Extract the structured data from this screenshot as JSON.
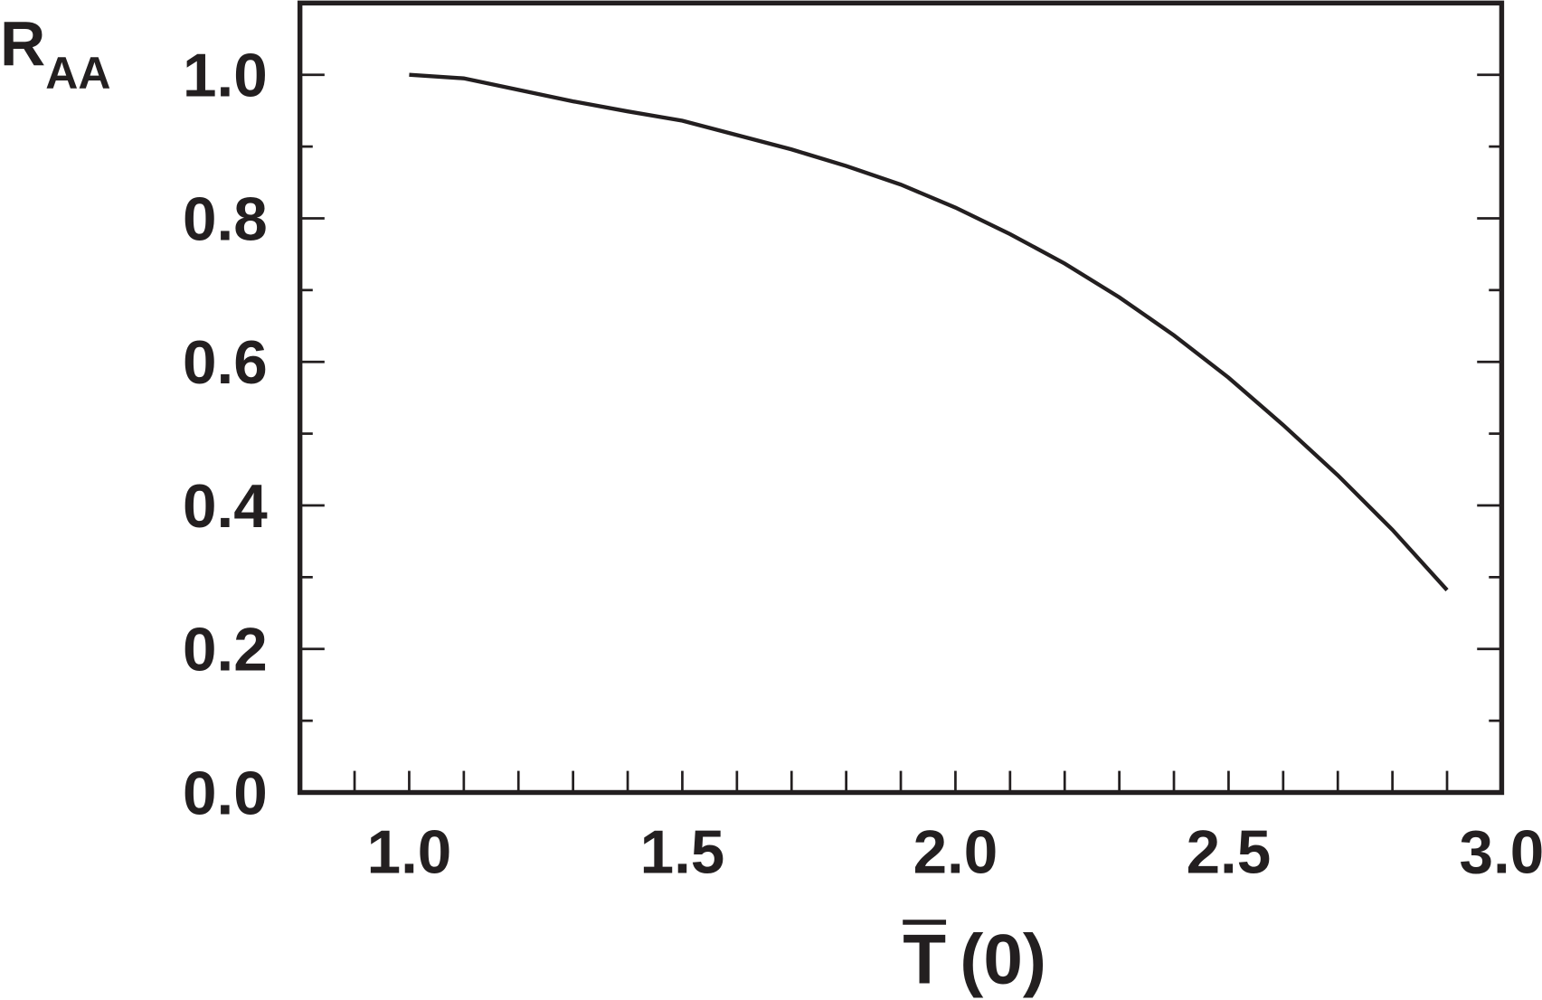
{
  "chart_data": {
    "type": "line",
    "ylabel": {
      "main": "R",
      "sub": "AA"
    },
    "xlabel": {
      "symbol": "T",
      "rest": "(0)"
    },
    "x": [
      1.0,
      1.1,
      1.2,
      1.3,
      1.4,
      1.5,
      1.6,
      1.7,
      1.8,
      1.9,
      2.0,
      2.1,
      2.2,
      2.3,
      2.4,
      2.5,
      2.6,
      2.7,
      2.8,
      2.9
    ],
    "series": [
      {
        "color": "#231f20",
        "values": [
          1.0,
          0.995,
          0.979,
          0.963,
          0.949,
          0.936,
          0.916,
          0.896,
          0.873,
          0.847,
          0.815,
          0.778,
          0.737,
          0.69,
          0.637,
          0.578,
          0.512,
          0.442,
          0.366,
          0.282
        ]
      }
    ],
    "xlim": [
      0.8,
      3.0
    ],
    "ylim": [
      0,
      1.1
    ],
    "xticks": [
      {
        "value": 1,
        "label": "1.0"
      },
      1.5,
      {
        "value": 2,
        "label": "2.0"
      },
      2.5,
      {
        "value": 3,
        "label": "3.0"
      }
    ],
    "yticks": [
      {
        "value": 0,
        "label": "0.0"
      },
      0.2,
      0.4,
      0.6,
      0.8,
      {
        "value": 1,
        "label": "1.0"
      }
    ],
    "xminor_ticks": [
      0.9,
      1.1,
      1.2,
      1.3,
      1.4,
      1.6,
      1.7,
      1.8,
      1.9,
      2.1,
      2.2,
      2.3,
      2.4,
      2.6,
      2.7,
      2.8,
      2.9
    ],
    "yminor_ticks": [
      0.1,
      0.3,
      0.5,
      0.7,
      0.9
    ]
  }
}
